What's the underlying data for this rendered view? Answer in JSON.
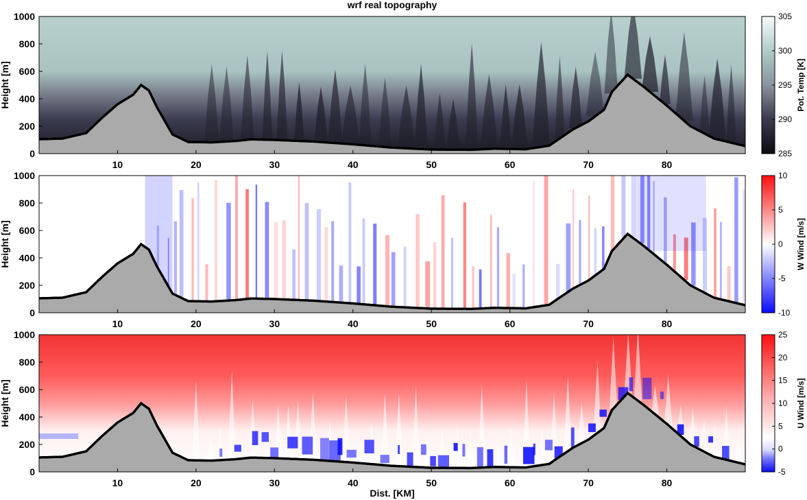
{
  "chart_data": {
    "title": "wrf real topography",
    "type": "heatmap",
    "x_label": "Dist. [KM]",
    "x_range": [
      0,
      90
    ],
    "x_ticks": [
      10,
      20,
      30,
      40,
      50,
      60,
      70,
      80
    ],
    "terrain": {
      "x": [
        0,
        3,
        6,
        8,
        10,
        12,
        13,
        14,
        15,
        17,
        19,
        22,
        25,
        27,
        30,
        35,
        40,
        45,
        50,
        55,
        58,
        62,
        65,
        68,
        70,
        72,
        73,
        75,
        77,
        80,
        83,
        86,
        90
      ],
      "height": [
        105,
        110,
        150,
        260,
        360,
        430,
        500,
        460,
        340,
        140,
        85,
        82,
        92,
        104,
        100,
        88,
        68,
        44,
        30,
        28,
        36,
        32,
        58,
        175,
        235,
        320,
        450,
        575,
        490,
        350,
        200,
        110,
        55
      ]
    },
    "panels": [
      {
        "name": "pot-temp",
        "y_label": "Height [m]",
        "y_range": [
          0,
          1000
        ],
        "y_ticks": [
          0,
          200,
          400,
          600,
          800,
          1000
        ],
        "colorbar": {
          "label": "Pot. Temp [K]",
          "range": [
            285,
            305
          ],
          "ticks": [
            285,
            290,
            295,
            300,
            305
          ]
        }
      },
      {
        "name": "w-wind",
        "y_label": "Height [m]",
        "y_range": [
          0,
          1000
        ],
        "y_ticks": [
          0,
          200,
          400,
          600,
          800,
          1000
        ],
        "colorbar": {
          "label": "W Wind [m/s]",
          "range": [
            -10,
            10
          ],
          "ticks": [
            -10,
            -5,
            0,
            5,
            10
          ]
        }
      },
      {
        "name": "u-wind",
        "y_label": "Height [m]",
        "y_range": [
          0,
          1000
        ],
        "y_ticks": [
          0,
          200,
          400,
          600,
          800,
          1000
        ],
        "colorbar": {
          "label": "U Wind [m/s]",
          "range": [
            -5,
            25
          ],
          "ticks": [
            -5,
            0,
            5,
            10,
            15,
            20,
            25
          ]
        }
      }
    ]
  },
  "colors": {
    "terrain_fill": "#aaaaaa",
    "terrain_line": "#000000",
    "temp_low": "#0b0b12",
    "temp_high": "#f7fbfb",
    "wind_neg": "#0a0aff",
    "wind_pos": "#ff1010"
  }
}
